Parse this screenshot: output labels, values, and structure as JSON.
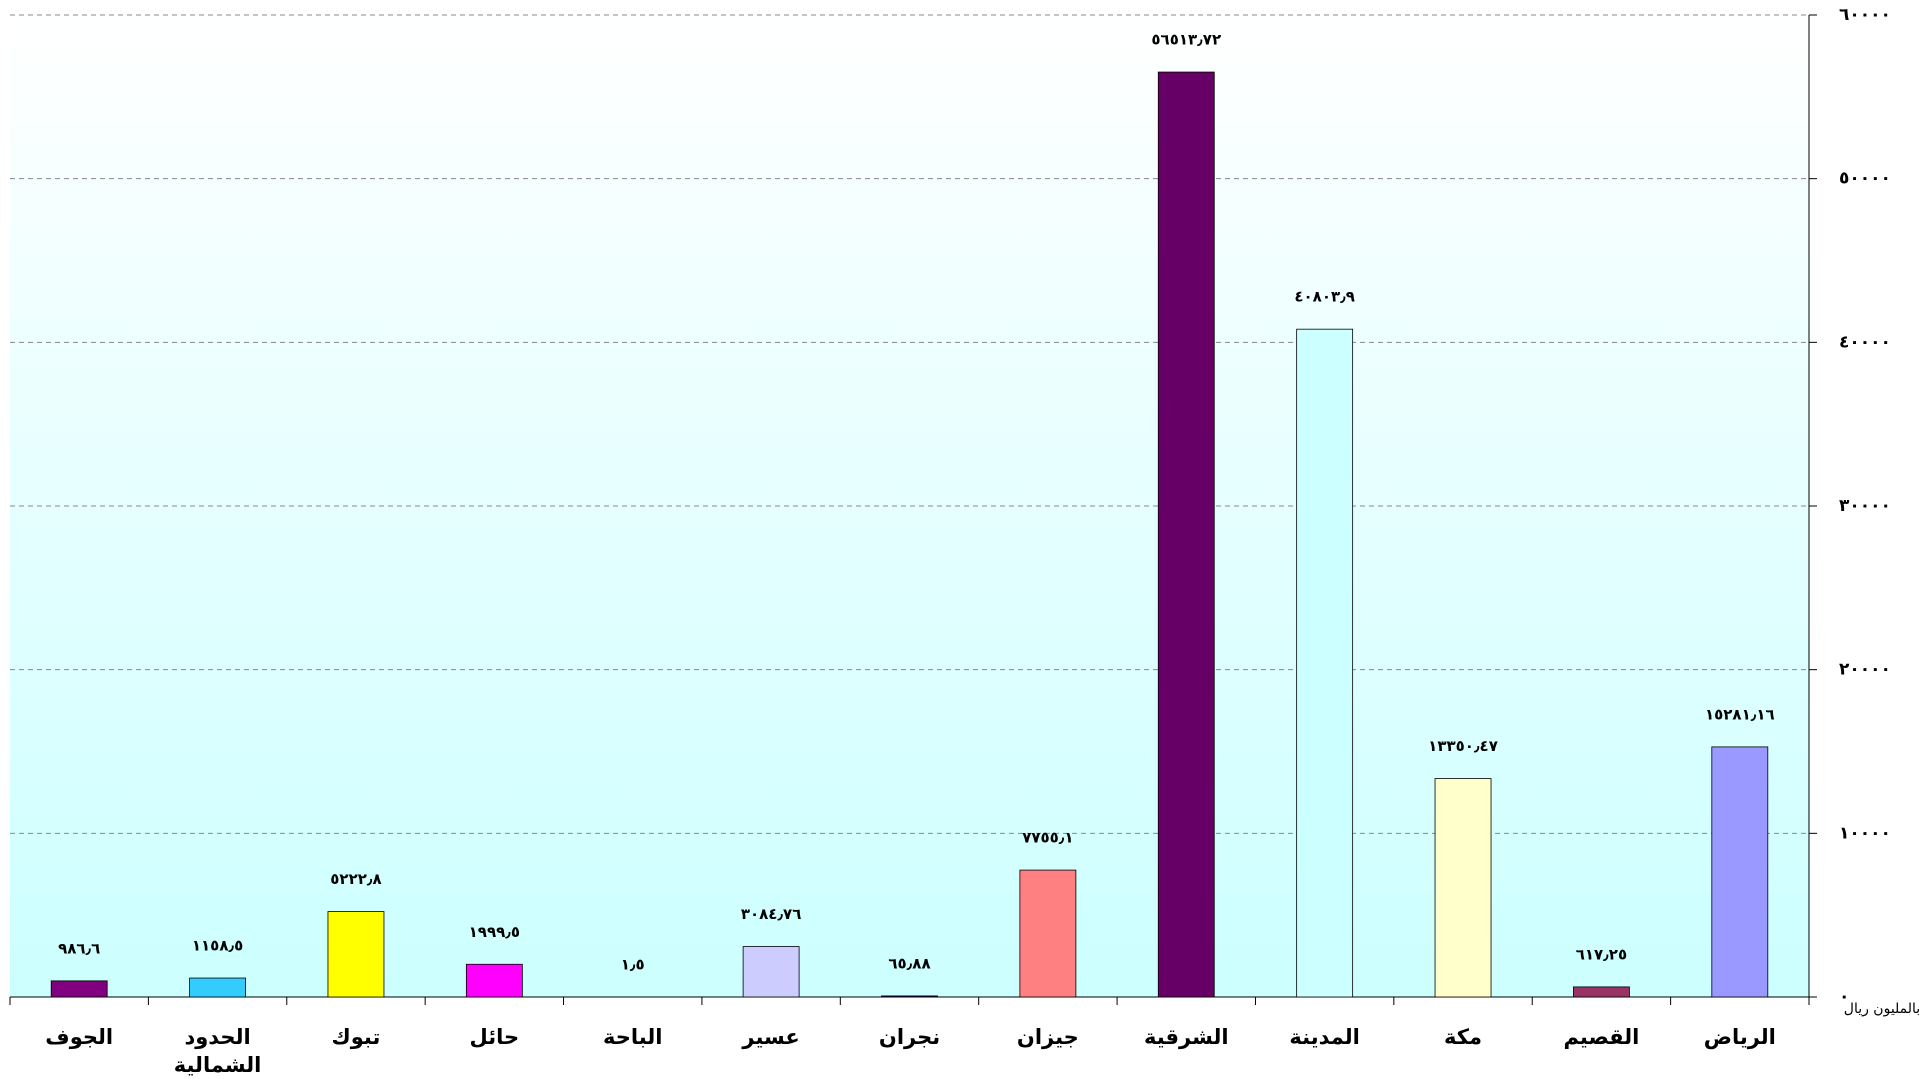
{
  "chart_data": {
    "type": "bar",
    "categories": [
      "الجوف",
      "الحدود الشمالية",
      "تبوك",
      "حائل",
      "الباحة",
      "عسير",
      "نجران",
      "جيزان",
      "الشرقية",
      "المدينة",
      "مكة",
      "القصيم",
      "الرياض"
    ],
    "values": [
      986.6,
      1158.5,
      5222.8,
      1999.5,
      1.5,
      3084.76,
      65.88,
      7755.1,
      56513.72,
      40803.9,
      13350.47,
      617.25,
      15281.16
    ],
    "value_labels": [
      "٩٨٦٫٦",
      "١١٥٨٫٥",
      "٥٢٢٢٫٨",
      "١٩٩٩٫٥",
      "١٫٥",
      "٣٠٨٤٫٧٦",
      "٦٥٫٨٨",
      "٧٧٥٥٫١",
      "٥٦٥١٣٫٧٢",
      "٤٠٨٠٣٫٩",
      "١٣٣٥٠٫٤٧",
      "٦١٧٫٢٥",
      "١٥٢٨١٫١٦"
    ],
    "colors": [
      "#800080",
      "#33ccff",
      "#ffff00",
      "#ff00ff",
      "#800000",
      "#ccccff",
      "#000080",
      "#ff8080",
      "#660066",
      "#ccffff",
      "#ffffcc",
      "#993366",
      "#9999ff"
    ],
    "ylim": [
      0,
      60000
    ],
    "yticks": [
      {
        "value": 0,
        "label": "٠"
      },
      {
        "value": 10000,
        "label": "١٠٠٠٠"
      },
      {
        "value": 20000,
        "label": "٢٠٠٠٠"
      },
      {
        "value": 30000,
        "label": "٣٠٠٠٠"
      },
      {
        "value": 40000,
        "label": "٤٠٠٠٠"
      },
      {
        "value": 50000,
        "label": "٥٠٠٠٠"
      },
      {
        "value": 60000,
        "label": "٦٠٠٠٠"
      }
    ],
    "y_axis_side": "right",
    "grid": true,
    "annotation": "بالمليون ريال"
  }
}
